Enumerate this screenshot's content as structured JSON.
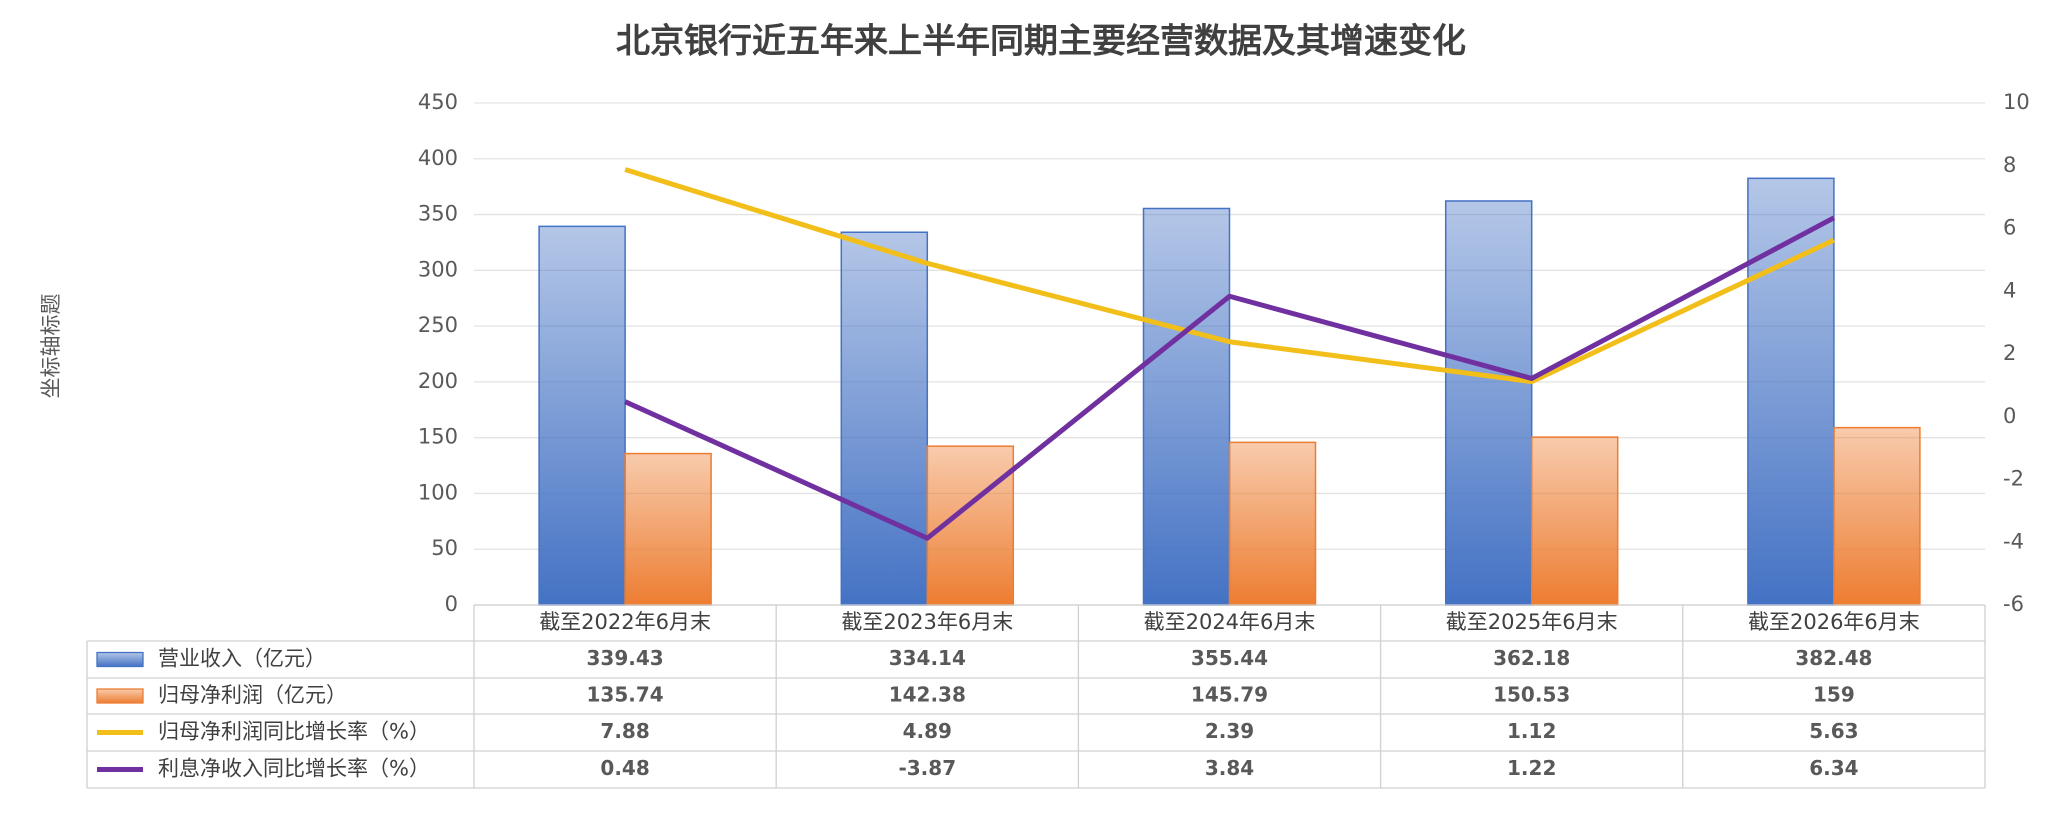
{
  "chart_data": {
    "type": "bar",
    "title": "北京银行近五年来上半年同期主要经营数据及其增速变化",
    "y_label": "坐标轴标题",
    "categories": [
      "截至2022年6月末",
      "截至2023年6月末",
      "截至2024年6月末",
      "截至2025年6月末",
      "截至2026年6月末"
    ],
    "series": [
      {
        "name": "营业收入（亿元）",
        "type": "bar",
        "color": "#4472c4",
        "values": [
          339.43,
          334.14,
          355.44,
          362.18,
          382.48
        ]
      },
      {
        "name": "归母净利润（亿元）",
        "type": "bar",
        "color": "#ed7d31",
        "values": [
          135.74,
          142.38,
          145.79,
          150.53,
          159
        ]
      },
      {
        "name": "归母净利润同比增长率（%）",
        "type": "line",
        "axis": "y2",
        "color": "#f2bf1a",
        "values": [
          7.88,
          4.89,
          2.39,
          1.12,
          5.63
        ]
      },
      {
        "name": "利息净收入同比增长率（%）",
        "type": "line",
        "axis": "y2",
        "color": "#7030a0",
        "values": [
          0.48,
          -3.87,
          3.84,
          1.22,
          6.34
        ]
      }
    ],
    "ylim": [
      0,
      450
    ],
    "yticks": [
      0,
      50,
      100,
      150,
      200,
      250,
      300,
      350,
      400,
      450
    ],
    "y2lim": [
      -6,
      10
    ],
    "y2ticks": [
      -6,
      -4,
      -2,
      0,
      2,
      4,
      6,
      8,
      10
    ],
    "grid": true
  }
}
